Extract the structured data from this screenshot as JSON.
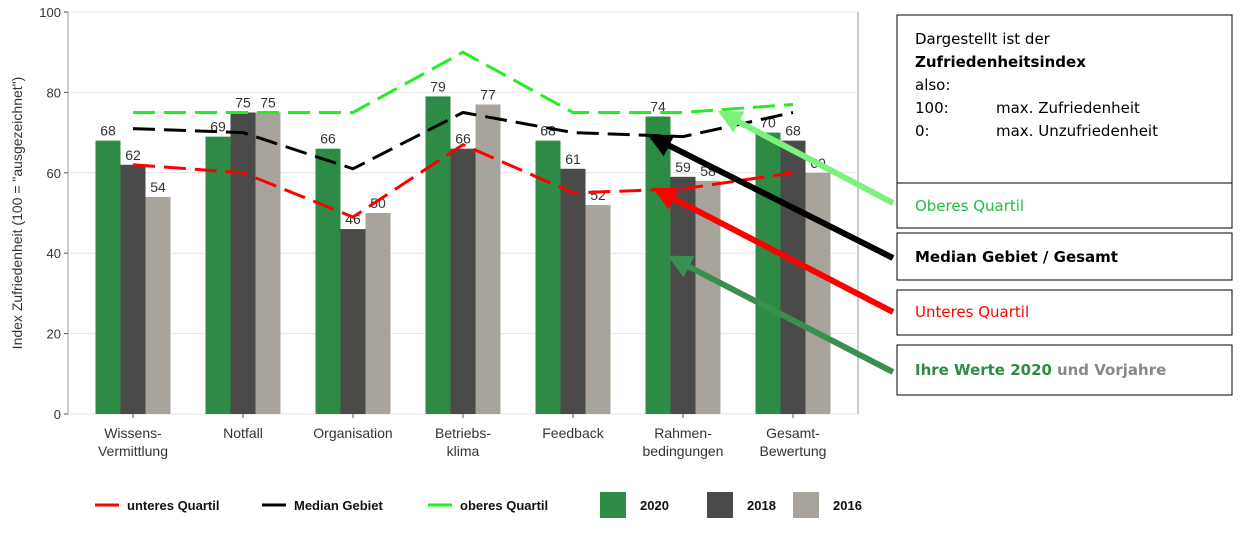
{
  "chart_data": {
    "type": "bar",
    "y_label": "Index Zufriedenheit (100 = \"ausgezeichnet\")",
    "categories": [
      "Wissens-\nVermittlung",
      "Notfall",
      "Organisation",
      "Betriebs-\nklima",
      "Feedback",
      "Rahmen-\nbedingungen",
      "Gesamt-\nBewertung"
    ],
    "series": [
      {
        "name": "2020",
        "color": "#2e8b45",
        "values": [
          68,
          69,
          66,
          79,
          68,
          74,
          70
        ]
      },
      {
        "name": "2018",
        "color": "#4a4a48",
        "values": [
          62,
          75,
          46,
          66,
          61,
          59,
          68
        ]
      },
      {
        "name": "2016",
        "color": "#a8a49c",
        "values": [
          54,
          75,
          50,
          77,
          52,
          58,
          60
        ]
      }
    ],
    "line_series": [
      {
        "name": "unteres Quartil",
        "color": "#ff0000",
        "values": [
          62,
          60,
          49,
          67,
          55,
          56,
          60
        ]
      },
      {
        "name": "Median Gebiet",
        "color": "#000000",
        "values": [
          71,
          70,
          61,
          75,
          70,
          69,
          75
        ]
      },
      {
        "name": "oberes Quartil",
        "color": "#22ee22",
        "values": [
          75,
          75,
          75,
          90,
          75,
          75,
          77
        ]
      }
    ],
    "ylim": [
      0,
      100
    ],
    "yticks": [
      0,
      20,
      40,
      60,
      80,
      100
    ],
    "grid": true,
    "legend": "bottom"
  },
  "info_box": {
    "lines": [
      "Dargestellt ist der",
      "Zufriedenheitsindex",
      "also:"
    ],
    "rows": [
      [
        "100:",
        "max. Zufriedenheit"
      ],
      [
        "0:",
        "max. Unzufriedenheit"
      ]
    ]
  },
  "callouts": [
    {
      "text": "Oberes Quartil",
      "color": "#22bb44"
    },
    {
      "text": "Median Gebiet / Gesamt",
      "color": "#000000"
    },
    {
      "text": "Unteres Quartil",
      "color": "#ff0000"
    },
    {
      "parts": [
        "Ihre Werte 2020",
        "und Vorjahre"
      ],
      "colors": [
        "#2e8b45",
        "#888888"
      ]
    }
  ]
}
